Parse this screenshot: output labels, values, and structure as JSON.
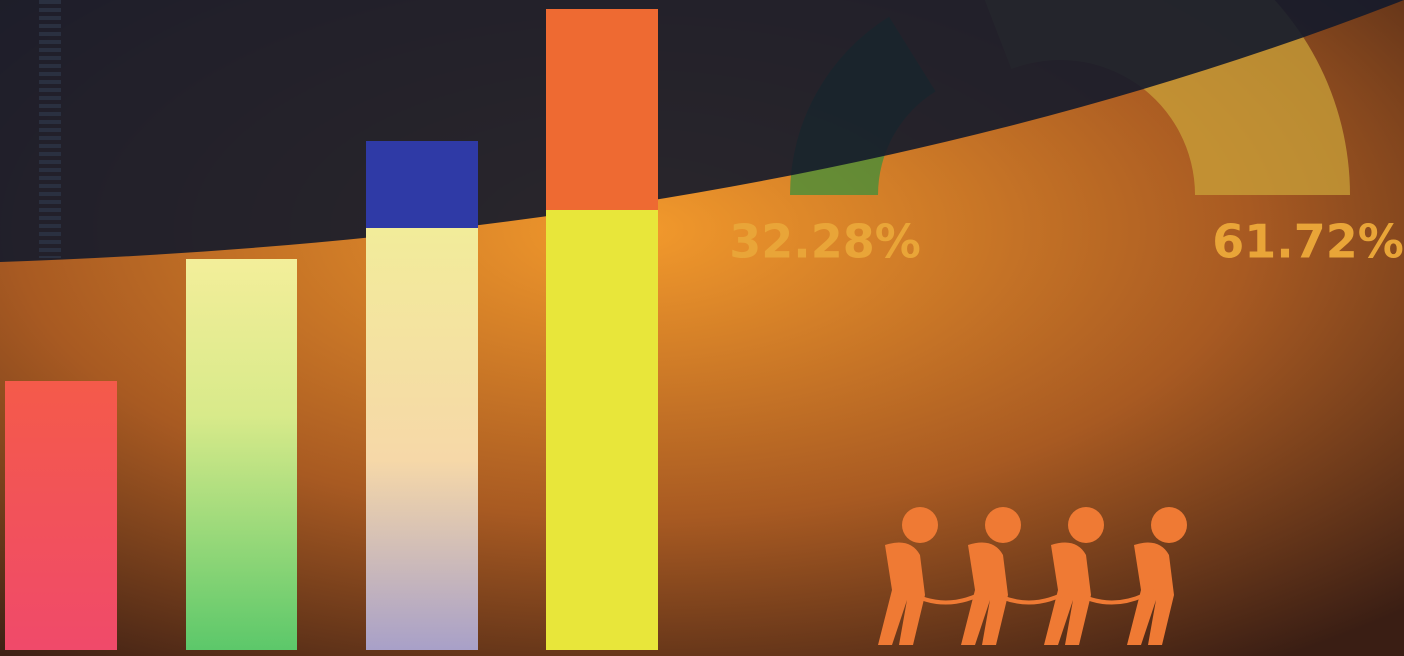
{
  "chart_data": {
    "type": "gauge",
    "values": [
      32.28,
      61.72
    ],
    "value_labels": [
      "32.28%",
      "61.72%"
    ],
    "colors": [
      "#3f8f3a",
      "#c9a23a"
    ]
  }
}
